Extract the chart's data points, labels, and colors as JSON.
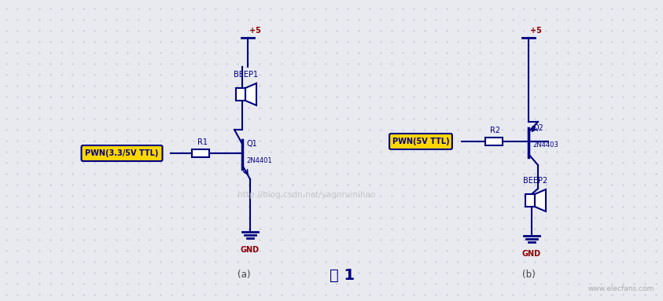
{
  "bg_color": "#e8eaf0",
  "dot_color": "#c8c8d8",
  "line_color": "#000080",
  "label_color": "#8B0000",
  "pwm_fill": "#FFD700",
  "pwm_text_color": "#000080",
  "watermark": "http://blog.csdn.net/yagnruinihao",
  "watermark_color": "#bbbbbb",
  "title": "图 1",
  "label_a": "(a)",
  "label_b": "(b)",
  "figsize": [
    8.43,
    3.83
  ],
  "dpi": 100
}
